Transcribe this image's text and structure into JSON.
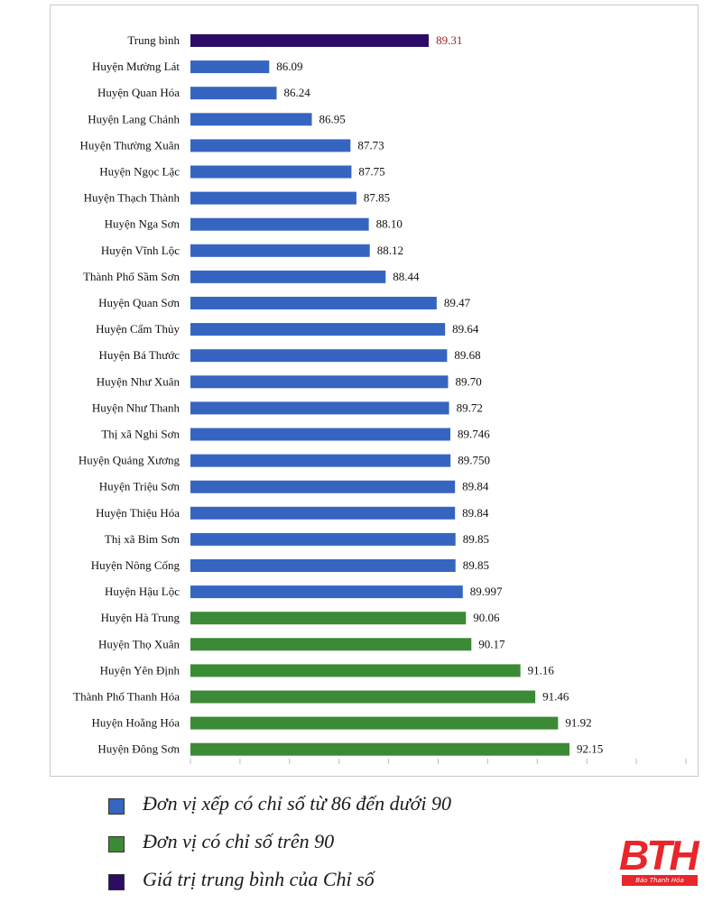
{
  "chart_data": {
    "type": "bar",
    "orientation": "horizontal",
    "categories": [
      "Trung bình",
      "Huyện Mường Lát",
      "Huyện Quan Hóa",
      "Huyện Lang Chánh",
      "Huyện Thường Xuân",
      "Huyện Ngọc Lặc",
      "Huyện Thạch Thành",
      "Huyện Nga Sơn",
      "Huyện Vĩnh Lộc",
      "Thành Phố Sầm Sơn",
      "Huyện Quan Sơn",
      "Huyện Cẩm Thủy",
      "Huyện Bá Thước",
      "Huyện Như Xuân",
      "Huyện Như Thanh",
      "Thị xã Nghi Sơn",
      "Huyện Quảng Xương",
      "Huyện Triệu Sơn",
      "Huyện Thiệu Hóa",
      "Thị xã Bỉm Sơn",
      "Huyện Nông Cống",
      "Huyện Hậu Lộc",
      "Huyện Hà Trung",
      "Huyện Thọ Xuân",
      "Huyện Yên Định",
      "Thành Phố Thanh Hóa",
      "Huyện Hoằng Hóa",
      "Huyện Đông Sơn"
    ],
    "values": [
      89.31,
      86.09,
      86.24,
      86.95,
      87.73,
      87.75,
      87.85,
      88.1,
      88.12,
      88.44,
      89.47,
      89.64,
      89.68,
      89.7,
      89.72,
      89.746,
      89.75,
      89.84,
      89.84,
      89.85,
      89.85,
      89.997,
      90.06,
      90.17,
      91.16,
      91.46,
      91.92,
      92.15
    ],
    "value_labels": [
      "89.31",
      "86.09",
      "86.24",
      "86.95",
      "87.73",
      "87.75",
      "87.85",
      "88.10",
      "88.12",
      "88.44",
      "89.47",
      "89.64",
      "89.68",
      "89.70",
      "89.72",
      "89.746",
      "89.750",
      "89.84",
      "89.84",
      "89.85",
      "89.85",
      "89.997",
      "90.06",
      "90.17",
      "91.16",
      "91.46",
      "91.92",
      "92.15"
    ],
    "groups": [
      "avg",
      "below90",
      "below90",
      "below90",
      "below90",
      "below90",
      "below90",
      "below90",
      "below90",
      "below90",
      "below90",
      "below90",
      "below90",
      "below90",
      "below90",
      "below90",
      "below90",
      "below90",
      "below90",
      "below90",
      "below90",
      "below90",
      "above90",
      "above90",
      "above90",
      "above90",
      "above90",
      "above90"
    ],
    "colors": {
      "below90": "#3565c0",
      "above90": "#3b8a35",
      "avg": "#2c0c66",
      "avg_label": "#9b1f1f",
      "label": "#111111"
    },
    "xlim": [
      84.5,
      94.5
    ],
    "x_ticks_count": 10,
    "grid": false,
    "legend_position": "bottom-left"
  },
  "legend": {
    "items": [
      {
        "label": "Đơn vị xếp có chỉ số từ 86 đến dưới 90",
        "color": "#3565c0"
      },
      {
        "label": "Đơn vị có chỉ số trên 90",
        "color": "#3b8a35"
      },
      {
        "label": "Giá trị trung bình của Chỉ số",
        "color": "#2c0c66"
      }
    ]
  },
  "logo": {
    "mark": "BTH",
    "subtitle": "Báo Thanh Hóa"
  }
}
